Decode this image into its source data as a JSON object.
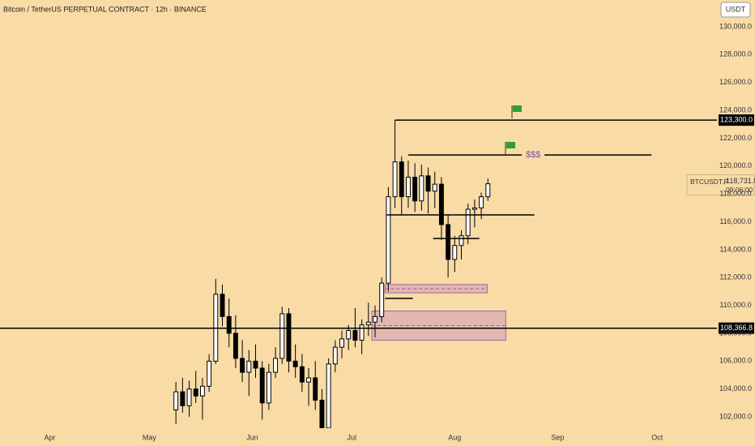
{
  "chart_data": {
    "type": "candlestick",
    "title": "Bitcoin / TetherUS PERPETUAL CONTRACT · 12h · BINANCE",
    "currency": "USDT",
    "up_color": "#ffffff",
    "down_color": "#000000",
    "x": [
      53,
      55,
      57,
      59,
      61,
      63,
      65,
      67,
      69,
      71,
      73,
      75,
      77,
      79,
      81,
      83,
      85,
      87,
      89,
      91,
      93,
      95,
      97,
      99,
      101,
      103,
      105,
      107,
      109,
      111,
      113,
      115,
      117,
      119,
      121,
      123,
      125,
      127,
      129,
      131,
      133,
      135,
      137,
      139,
      141,
      143,
      145,
      147
    ],
    "open": [
      102500,
      103800,
      102800,
      104000,
      103500,
      104200,
      106000,
      110800,
      109200,
      108000,
      106200,
      105200,
      106000,
      105500,
      103000,
      105200,
      106200,
      109400,
      106000,
      105600,
      104500,
      104800,
      103200,
      101200,
      105800,
      107000,
      107600,
      108200,
      107500,
      108600,
      108800,
      109200,
      111600,
      117800,
      120300,
      117800,
      119200,
      117500,
      119300,
      118200,
      118700,
      115800,
      113300,
      114300,
      115000,
      116900,
      117000,
      117800
    ],
    "high": [
      104500,
      104800,
      104600,
      105300,
      104800,
      106500,
      111900,
      111500,
      110500,
      109300,
      107500,
      106800,
      107200,
      106000,
      105800,
      107000,
      109900,
      109800,
      107200,
      106500,
      105500,
      106000,
      104000,
      106200,
      107500,
      108200,
      108600,
      109800,
      109000,
      110200,
      110000,
      112000,
      118500,
      123300,
      120700,
      120400,
      120200,
      120100,
      119900,
      119600,
      119200,
      116500,
      115000,
      115400,
      117300,
      117600,
      118100,
      119100
    ],
    "low": [
      101500,
      102300,
      102000,
      103000,
      101800,
      103800,
      105800,
      108500,
      107000,
      105500,
      104500,
      103500,
      104800,
      101800,
      102500,
      104800,
      105800,
      105200,
      104800,
      103800,
      102800,
      102500,
      101000,
      101000,
      105200,
      106200,
      106800,
      107000,
      106500,
      107800,
      107700,
      108800,
      111000,
      117000,
      116500,
      117000,
      116700,
      116800,
      116600,
      117000,
      114700,
      112000,
      112400,
      113300,
      114400,
      115600,
      116200,
      117500
    ],
    "close": [
      103800,
      102800,
      104000,
      103500,
      104200,
      106000,
      110800,
      109200,
      108000,
      106200,
      105200,
      106000,
      105500,
      103000,
      105200,
      106200,
      109400,
      106000,
      105600,
      104500,
      104800,
      103200,
      101200,
      105800,
      107000,
      107600,
      108200,
      107500,
      108600,
      108800,
      109200,
      111600,
      117800,
      120300,
      117800,
      119200,
      117500,
      119300,
      118200,
      118700,
      115800,
      113300,
      114300,
      115000,
      116900,
      117000,
      117800,
      118731.8
    ],
    "xlim": [
      0,
      216
    ],
    "xticks": [
      {
        "value": 15,
        "label": "Apr"
      },
      {
        "value": 45,
        "label": "May"
      },
      {
        "value": 76,
        "label": "Jun"
      },
      {
        "value": 106,
        "label": "Jul"
      },
      {
        "value": 137,
        "label": "Aug"
      },
      {
        "value": 168,
        "label": "Sep"
      },
      {
        "value": 198,
        "label": "Oct"
      }
    ],
    "ylim": [
      101190,
      131920
    ],
    "yticks": [
      {
        "value": 102000,
        "label": "102,000.0"
      },
      {
        "value": 104000,
        "label": "104,000.0"
      },
      {
        "value": 106000,
        "label": "106,000.0"
      },
      {
        "value": 108000,
        "label": "108,000.0"
      },
      {
        "value": 110000,
        "label": "110,000.0"
      },
      {
        "value": 112000,
        "label": "112,000.0"
      },
      {
        "value": 114000,
        "label": "114,000.0"
      },
      {
        "value": 116000,
        "label": "116,000.0"
      },
      {
        "value": 118000,
        "label": "118,000.0"
      },
      {
        "value": 120000,
        "label": "120,000.0"
      },
      {
        "value": 122000,
        "label": "122,000.0"
      },
      {
        "value": 124000,
        "label": "124,000.0"
      },
      {
        "value": 126000,
        "label": "126,000.0"
      },
      {
        "value": 128000,
        "label": "128,000.0"
      },
      {
        "value": 130000,
        "label": "130,000.0"
      }
    ],
    "price_lines": [
      {
        "value": 123300,
        "label": "123,300.0",
        "from": 119
      },
      {
        "value": 108366.8,
        "label": "108,366.8",
        "from": 0
      }
    ],
    "levels": [
      {
        "value": 120800,
        "from": 123,
        "to": 196.3,
        "label": "$$$"
      },
      {
        "value": 116500,
        "from": 116.5,
        "to": 161
      },
      {
        "value": 114800,
        "from": 130.5,
        "to": 144.4
      },
      {
        "value": 110500,
        "from": 116,
        "to": 124.4
      }
    ],
    "zones": [
      {
        "top": 111500,
        "bottom": 110900,
        "from": 116,
        "to": 146.8
      },
      {
        "top": 109600,
        "bottom": 107500,
        "from": 112,
        "to": 152.4
      }
    ],
    "last_price": {
      "symbol": "BTCUSDT.P",
      "label": "118,731.8",
      "countdown": "09:06:00"
    }
  }
}
